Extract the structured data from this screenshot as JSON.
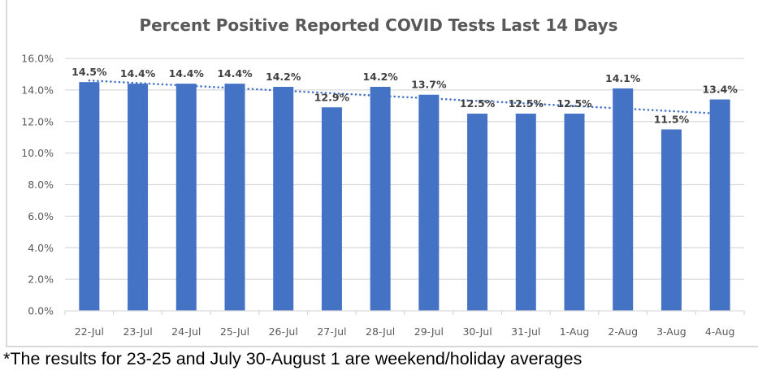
{
  "chart_data": {
    "type": "bar",
    "title": "Percent Positive Reported COVID Tests Last 14 Days",
    "xlabel": "",
    "ylabel": "",
    "categories": [
      "22-Jul",
      "23-Jul",
      "24-Jul",
      "25-Jul",
      "26-Jul",
      "27-Jul",
      "28-Jul",
      "29-Jul",
      "30-Jul",
      "31-Jul",
      "1-Aug",
      "2-Aug",
      "3-Aug",
      "4-Aug"
    ],
    "values": [
      14.5,
      14.4,
      14.4,
      14.4,
      14.2,
      12.9,
      14.2,
      13.7,
      12.5,
      12.5,
      12.5,
      14.1,
      11.5,
      13.4
    ],
    "data_labels": [
      "14.5%",
      "14.4%",
      "14.4%",
      "14.4%",
      "14.2%",
      "12.9%",
      "14.2%",
      "13.7%",
      "12.5%",
      "12.5%",
      "12.5%",
      "14.1%",
      "11.5%",
      "13.4%"
    ],
    "ylim": [
      0,
      16
    ],
    "yticks": [
      0,
      2,
      4,
      6,
      8,
      10,
      12,
      14,
      16
    ],
    "ytick_labels": [
      "0.0%",
      "2.0%",
      "4.0%",
      "6.0%",
      "8.0%",
      "10.0%",
      "12.0%",
      "14.0%",
      "16.0%"
    ],
    "grid": true,
    "trendline": {
      "type": "linear",
      "style": "dotted",
      "start": 14.6,
      "end": 12.5
    },
    "colors": {
      "bar": "#4472c4",
      "trendline": "#4472c4",
      "grid": "#d9d9d9"
    },
    "legend": "none"
  },
  "footnote": "*The results for 23-25 and July 30-August 1 are weekend/holiday averages"
}
